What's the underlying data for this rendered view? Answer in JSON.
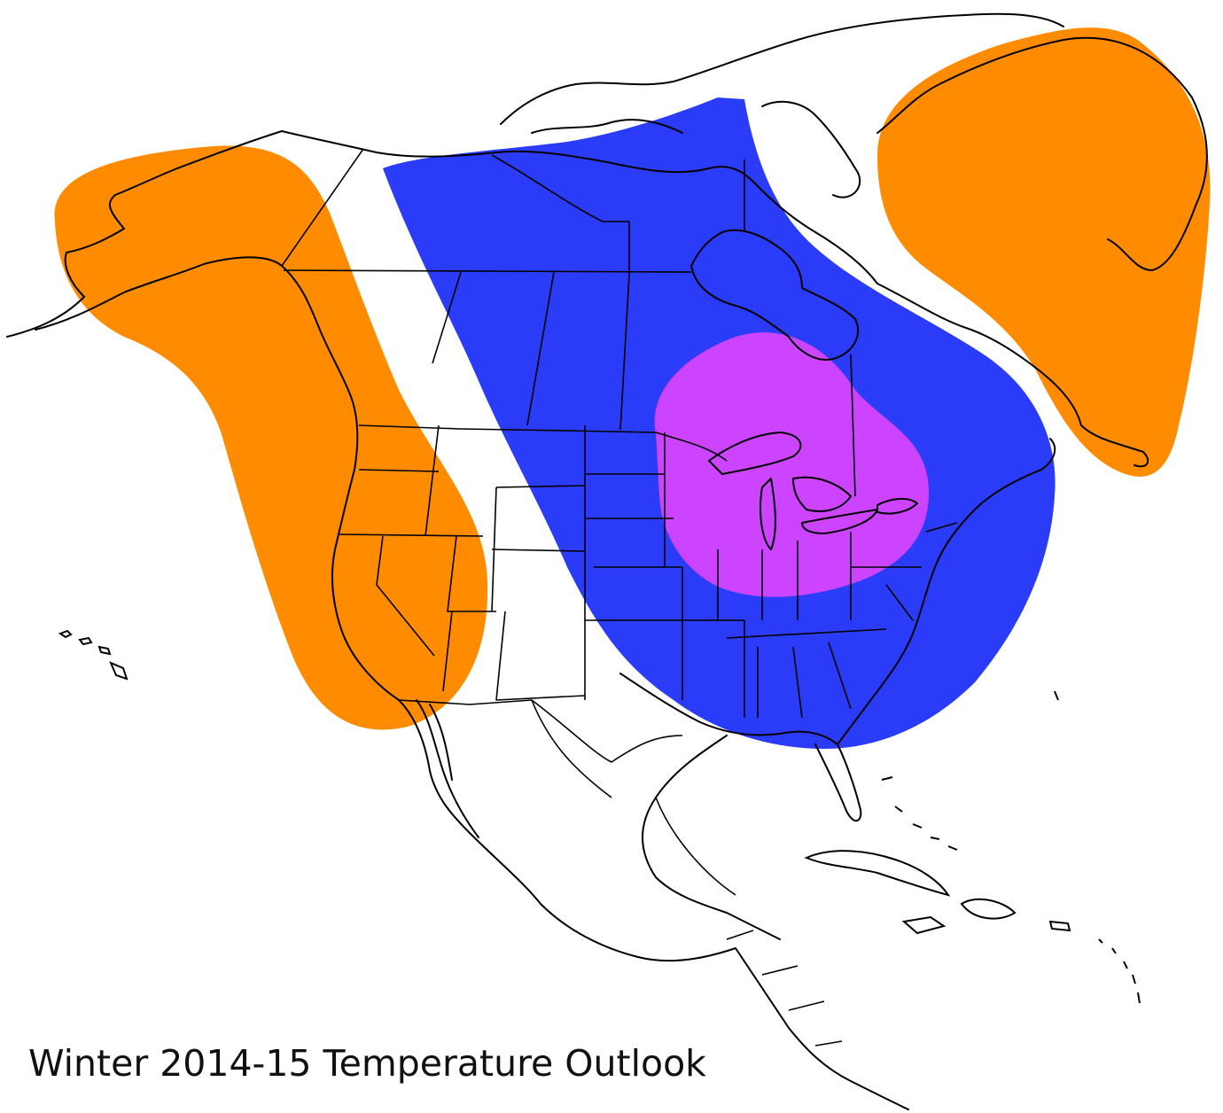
{
  "map": {
    "title": "Winter 2014-15 Temperature Outlook",
    "background_color": "#ffffff",
    "outline_color": "#000000",
    "regions": [
      {
        "name": "alaska-western-us",
        "fill": "#ff8c00"
      },
      {
        "name": "greenland-eastern-canada",
        "fill": "#ff8c00"
      },
      {
        "name": "central-eastern-north-america",
        "fill": "#2a3cf7"
      },
      {
        "name": "great-lakes-core",
        "fill": "#cc44ff",
        "edge": "#ff55ff"
      }
    ]
  }
}
